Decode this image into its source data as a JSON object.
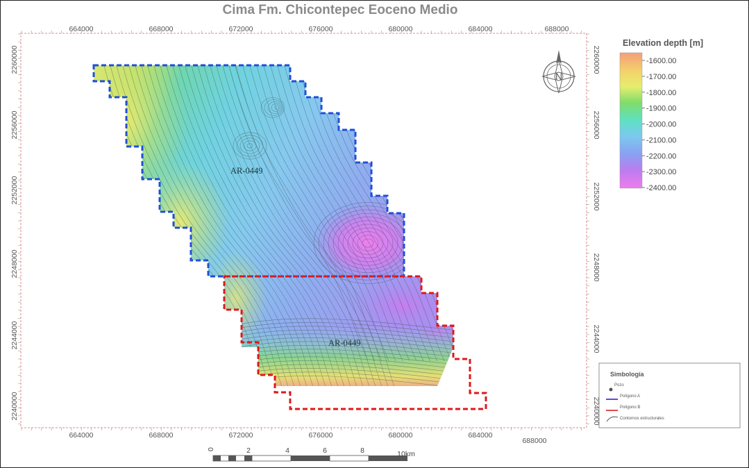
{
  "title": "Cima Fm. Chicontepec Eoceno Medio",
  "x_axis": {
    "ticks": [
      "664000",
      "668000",
      "672000",
      "676000",
      "680000",
      "684000",
      "688000"
    ]
  },
  "y_axis": {
    "ticks": [
      "2260000",
      "2256000",
      "2252000",
      "2248000",
      "2244000",
      "2240000"
    ]
  },
  "legend": {
    "title": "Elevation depth [m]",
    "labels": [
      "-1600.00",
      "-1700.00",
      "-1800.00",
      "-1900.00",
      "-2000.00",
      "-2100.00",
      "-2200.00",
      "-2300.00",
      "-2400.00"
    ],
    "colors": [
      "#f59e7a",
      "#f2d36a",
      "#e6ed6e",
      "#7fdc6a",
      "#5fe0c4",
      "#7cc8ef",
      "#8aa0f2",
      "#bc7cf0",
      "#ef7cec"
    ]
  },
  "well_labels": [
    "AR-0449",
    "AR-0449"
  ],
  "polygons": {
    "a_color": "#1f4fd8",
    "b_color": "#e01818"
  },
  "scale_bar": {
    "labels": [
      "0",
      "2",
      "4",
      "6",
      "8",
      "10km"
    ]
  },
  "simbologia": {
    "title": "Simbología",
    "items": [
      "Pozo",
      "Polígono A",
      "Polígono B",
      "Contornos estructurales"
    ]
  },
  "north_arrow": {
    "icon": "north-arrow-icon",
    "label": "N"
  }
}
